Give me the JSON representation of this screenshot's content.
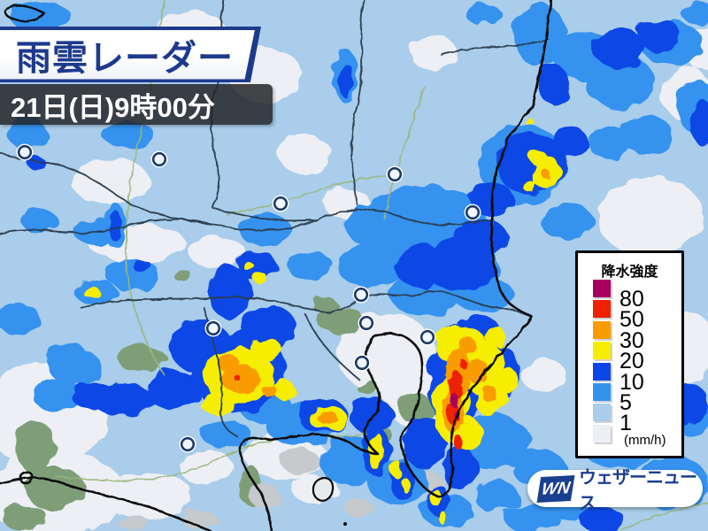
{
  "header": {
    "title": "雨雲レーダー",
    "datetime": "21日(日)9時00分"
  },
  "legend": {
    "title": "降水強度",
    "unit": "(mm/h)",
    "levels": [
      {
        "value": "80",
        "color": "#A8005E"
      },
      {
        "value": "50",
        "color": "#EE2000"
      },
      {
        "value": "30",
        "color": "#F89C00"
      },
      {
        "value": "20",
        "color": "#F6EE00"
      },
      {
        "value": "10",
        "color": "#0A47E6"
      },
      {
        "value": "5",
        "color": "#3492EF"
      },
      {
        "value": "1",
        "color": "#A9CDEA"
      },
      {
        "value": "",
        "color": "#EDEFF5"
      }
    ]
  },
  "logo": {
    "mark": "WN",
    "name": "ウェザーニュース"
  },
  "map": {
    "colors": {
      "base": "#A9CDEA",
      "white": "#EDEFF5",
      "green": "#7E9E78",
      "gray": "#C6CACC",
      "r5": "#3492EF",
      "r10": "#0A47E6",
      "r20": "#F6EE00",
      "r30": "#F89C00",
      "r50": "#EE2000",
      "r80": "#A8005E",
      "border": "#2C3D50",
      "coast": "#0B0B0B",
      "road": "#9BB77C",
      "marker_ring": "#1E3B66"
    },
    "blobs": {
      "white": [
        [
          218,
          38,
          38,
          26
        ],
        [
          300,
          85,
          42,
          30
        ],
        [
          345,
          175,
          30,
          22
        ],
        [
          392,
          230,
          26,
          18
        ],
        [
          125,
          205,
          44,
          26
        ],
        [
          155,
          275,
          55,
          22
        ],
        [
          245,
          285,
          32,
          18
        ],
        [
          490,
          60,
          26,
          20
        ],
        [
          775,
          105,
          28,
          30
        ],
        [
          795,
          55,
          20,
          25
        ],
        [
          50,
          470,
          70,
          58
        ],
        [
          62,
          558,
          80,
          48
        ],
        [
          170,
          560,
          48,
          26
        ],
        [
          735,
          245,
          60,
          45
        ],
        [
          700,
          330,
          45,
          35
        ],
        [
          768,
          390,
          42,
          40
        ],
        [
          615,
          425,
          26,
          18
        ],
        [
          435,
          398,
          55,
          46
        ],
        [
          468,
          442,
          36,
          40
        ],
        [
          322,
          515,
          45,
          28
        ],
        [
          232,
          527,
          30,
          20
        ],
        [
          356,
          553,
          26,
          16
        ]
      ],
      "green": [
        [
          40,
          505,
          22,
          30
        ],
        [
          62,
          552,
          34,
          24
        ],
        [
          28,
          585,
          25,
          15
        ],
        [
          160,
          405,
          28,
          14
        ],
        [
          205,
          310,
          10,
          7
        ],
        [
          385,
          362,
          26,
          16
        ],
        [
          366,
          344,
          14,
          9
        ],
        [
          415,
          437,
          13,
          8
        ],
        [
          282,
          548,
          14,
          22
        ],
        [
          470,
          462,
          20,
          16
        ],
        [
          432,
          492,
          12,
          9
        ]
      ],
      "gray": [
        [
          340,
          522,
          22,
          14
        ],
        [
          298,
          560,
          18,
          12
        ],
        [
          225,
          587,
          20,
          10
        ],
        [
          485,
          545,
          16,
          12
        ],
        [
          405,
          574,
          16,
          10
        ],
        [
          150,
          590,
          18,
          8
        ]
      ],
      "r5": [
        [
          45,
          18,
          35,
          16
        ],
        [
          145,
          70,
          28,
          16
        ],
        [
          30,
          150,
          22,
          18
        ],
        [
          145,
          152,
          30,
          14
        ],
        [
          110,
          262,
          26,
          16
        ],
        [
          45,
          250,
          20,
          14
        ],
        [
          150,
          310,
          30,
          18
        ],
        [
          108,
          330,
          24,
          14
        ],
        [
          20,
          360,
          25,
          18
        ],
        [
          75,
          400,
          22,
          14
        ],
        [
          300,
          260,
          30,
          18
        ],
        [
          350,
          300,
          26,
          16
        ],
        [
          420,
          300,
          40,
          24
        ],
        [
          470,
          270,
          35,
          22
        ],
        [
          520,
          300,
          45,
          28
        ],
        [
          480,
          332,
          40,
          24
        ],
        [
          545,
          332,
          35,
          20
        ],
        [
          390,
          85,
          14,
          30
        ],
        [
          130,
          255,
          12,
          26
        ],
        [
          545,
          15,
          20,
          12
        ],
        [
          610,
          40,
          30,
          35
        ],
        [
          660,
          62,
          35,
          28
        ],
        [
          700,
          92,
          40,
          30
        ],
        [
          760,
          50,
          35,
          25
        ],
        [
          790,
          122,
          25,
          30
        ],
        [
          730,
          152,
          30,
          22
        ],
        [
          790,
          15,
          20,
          12
        ],
        [
          590,
          185,
          50,
          45
        ],
        [
          640,
          250,
          30,
          20
        ],
        [
          690,
          162,
          25,
          18
        ],
        [
          480,
          250,
          70,
          40
        ],
        [
          430,
          255,
          40,
          26
        ],
        [
          700,
          500,
          45,
          30
        ],
        [
          760,
          545,
          40,
          30
        ],
        [
          650,
          562,
          35,
          25
        ],
        [
          600,
          585,
          30,
          18
        ],
        [
          775,
          470,
          30,
          22
        ],
        [
          340,
          480,
          40,
          24
        ],
        [
          395,
          520,
          35,
          28
        ],
        [
          450,
          545,
          35,
          25
        ],
        [
          505,
          577,
          30,
          18
        ],
        [
          560,
          500,
          40,
          30
        ],
        [
          610,
          530,
          30,
          22
        ],
        [
          560,
          560,
          25,
          18
        ],
        [
          300,
          460,
          30,
          18
        ],
        [
          255,
          490,
          28,
          16
        ],
        [
          690,
          422,
          30,
          22
        ],
        [
          85,
          415,
          30,
          20
        ],
        [
          65,
          447,
          28,
          18
        ]
      ],
      "r10": [
        [
          600,
          185,
          40,
          35
        ],
        [
          625,
          95,
          18,
          22
        ],
        [
          700,
          55,
          30,
          22
        ],
        [
          745,
          40,
          25,
          18
        ],
        [
          795,
          140,
          15,
          25
        ],
        [
          270,
          420,
          55,
          45
        ],
        [
          225,
          390,
          35,
          30
        ],
        [
          305,
          370,
          30,
          25
        ],
        [
          195,
          440,
          30,
          22
        ],
        [
          140,
          452,
          35,
          18
        ],
        [
          105,
          447,
          25,
          15
        ],
        [
          260,
          330,
          25,
          30
        ],
        [
          290,
          300,
          22,
          18
        ],
        [
          520,
          300,
          40,
          30
        ],
        [
          545,
          270,
          30,
          22
        ],
        [
          475,
          300,
          30,
          24
        ],
        [
          555,
          225,
          25,
          20
        ],
        [
          515,
          432,
          30,
          65
        ],
        [
          540,
          380,
          28,
          24
        ],
        [
          565,
          420,
          22,
          30
        ],
        [
          480,
          500,
          25,
          30
        ],
        [
          520,
          530,
          20,
          25
        ],
        [
          425,
          510,
          16,
          28
        ],
        [
          455,
          545,
          14,
          20
        ],
        [
          495,
          565,
          12,
          18
        ],
        [
          420,
          470,
          25,
          20
        ],
        [
          365,
          470,
          28,
          20
        ],
        [
          770,
          455,
          30,
          25
        ],
        [
          680,
          587,
          25,
          15
        ],
        [
          645,
          160,
          20,
          15
        ],
        [
          55,
          60,
          9,
          8
        ],
        [
          42,
          185,
          10,
          8
        ],
        [
          135,
          70,
          8,
          6
        ],
        [
          160,
          300,
          10,
          8
        ],
        [
          390,
          90,
          8,
          20
        ],
        [
          130,
          255,
          7,
          18
        ]
      ],
      "r20": [
        [
          617,
          195,
          16,
          20
        ],
        [
          607,
          177,
          10,
          8
        ],
        [
          600,
          212,
          8,
          6
        ],
        [
          598,
          137,
          5,
          4
        ],
        [
          270,
          425,
          40,
          32
        ],
        [
          300,
          395,
          18,
          14
        ],
        [
          245,
          455,
          20,
          12
        ],
        [
          320,
          440,
          14,
          10
        ],
        [
          295,
          315,
          8,
          6
        ],
        [
          282,
          302,
          6,
          5
        ],
        [
          103,
          330,
          10,
          6
        ],
        [
          520,
          390,
          30,
          22
        ],
        [
          545,
          415,
          25,
          30
        ],
        [
          510,
          460,
          20,
          40
        ],
        [
          555,
          450,
          18,
          22
        ],
        [
          530,
          492,
          15,
          20
        ],
        [
          560,
          380,
          12,
          10
        ],
        [
          575,
          430,
          10,
          14
        ],
        [
          370,
          472,
          22,
          14
        ],
        [
          425,
          510,
          8,
          22
        ],
        [
          448,
          530,
          6,
          10
        ],
        [
          458,
          548,
          5,
          8
        ],
        [
          492,
          562,
          6,
          10
        ],
        [
          500,
          585,
          5,
          7
        ]
      ],
      "r30": [
        [
          272,
          428,
          22,
          16
        ],
        [
          258,
          410,
          12,
          10
        ],
        [
          305,
          442,
          8,
          7
        ],
        [
          518,
          420,
          14,
          28
        ],
        [
          512,
          465,
          12,
          24
        ],
        [
          540,
          420,
          12,
          14
        ],
        [
          528,
          390,
          10,
          9
        ],
        [
          553,
          445,
          8,
          10
        ],
        [
          370,
          472,
          12,
          7
        ],
        [
          617,
          197,
          5,
          5
        ]
      ],
      "r50": [
        [
          515,
          435,
          8,
          16
        ],
        [
          512,
          468,
          7,
          12
        ],
        [
          518,
          500,
          5,
          8
        ],
        [
          524,
          412,
          4,
          5
        ],
        [
          268,
          427,
          4,
          3
        ]
      ],
      "r80": [
        [
          513,
          452,
          4,
          8
        ],
        [
          516,
          468,
          3,
          5
        ]
      ]
    },
    "markers": [
      [
        28,
        172
      ],
      [
        180,
        180
      ],
      [
        317,
        230
      ],
      [
        446,
        197
      ],
      [
        534,
        240
      ],
      [
        241,
        371
      ],
      [
        408,
        333
      ],
      [
        414,
        365
      ],
      [
        483,
        381
      ],
      [
        409,
        410
      ],
      [
        212,
        502
      ]
    ]
  }
}
